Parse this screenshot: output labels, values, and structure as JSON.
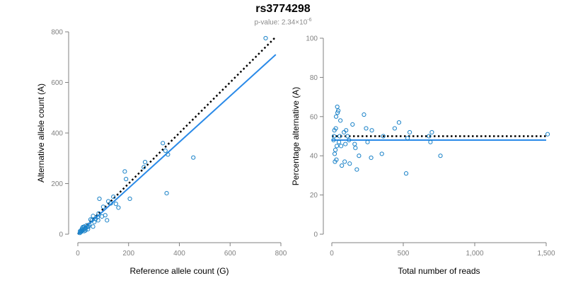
{
  "title": "rs3774298",
  "subtitle_prefix": "p-value: 2.34×10",
  "subtitle_exp": "-6",
  "colors": {
    "points": "#1a82c8",
    "fit": "#2a8ae8",
    "reference": "#000000",
    "axis": "#808080"
  },
  "chart_data": [
    {
      "type": "scatter",
      "xlabel": "Reference allele count (G)",
      "ylabel": "Alternative allele count (A)",
      "xlim": [
        0,
        800
      ],
      "ylim": [
        0,
        800
      ],
      "xticks": [
        0,
        200,
        400,
        600,
        800
      ],
      "yticks": [
        0,
        200,
        400,
        600,
        800
      ],
      "xtick_labels": [
        "0",
        "200",
        "400",
        "600",
        "800"
      ],
      "ytick_labels": [
        "0",
        "200",
        "400",
        "600",
        "800"
      ],
      "grid": false,
      "reference_line": {
        "style": "dotted",
        "x": [
          0,
          780
        ],
        "y": [
          0,
          780
        ]
      },
      "fit_line": {
        "style": "solid",
        "x": [
          0,
          780
        ],
        "y": [
          0,
          710
        ]
      },
      "points": [
        [
          740,
          775
        ],
        [
          455,
          303
        ],
        [
          350,
          162
        ],
        [
          355,
          315
        ],
        [
          345,
          330
        ],
        [
          335,
          360
        ],
        [
          265,
          285
        ],
        [
          260,
          265
        ],
        [
          205,
          140
        ],
        [
          190,
          218
        ],
        [
          185,
          248
        ],
        [
          160,
          105
        ],
        [
          140,
          148
        ],
        [
          130,
          122
        ],
        [
          120,
          130
        ],
        [
          115,
          55
        ],
        [
          108,
          75
        ],
        [
          100,
          108
        ],
        [
          95,
          70
        ],
        [
          85,
          140
        ],
        [
          82,
          82
        ],
        [
          78,
          68
        ],
        [
          70,
          60
        ],
        [
          65,
          48
        ],
        [
          60,
          72
        ],
        [
          55,
          55
        ],
        [
          50,
          58
        ],
        [
          45,
          38
        ],
        [
          42,
          30
        ],
        [
          38,
          28
        ],
        [
          35,
          35
        ],
        [
          30,
          25
        ],
        [
          28,
          22
        ],
        [
          25,
          30
        ],
        [
          22,
          18
        ],
        [
          20,
          28
        ],
        [
          18,
          15
        ],
        [
          16,
          20
        ],
        [
          14,
          10
        ],
        [
          12,
          14
        ],
        [
          10,
          8
        ],
        [
          9,
          12
        ],
        [
          8,
          5
        ],
        [
          25,
          12
        ],
        [
          30,
          15
        ],
        [
          18,
          25
        ],
        [
          40,
          20
        ],
        [
          60,
          30
        ],
        [
          80,
          55
        ],
        [
          150,
          120
        ]
      ]
    },
    {
      "type": "scatter",
      "xlabel": "Total number of reads",
      "ylabel": "Percentage alternative (A)",
      "xlim": [
        0,
        1500
      ],
      "ylim": [
        0,
        100
      ],
      "xticks": [
        0,
        500,
        1000,
        1500
      ],
      "yticks": [
        0,
        20,
        40,
        60,
        80,
        100
      ],
      "xtick_labels": [
        "0",
        "500",
        "1,000",
        "1,500"
      ],
      "ytick_labels": [
        "0",
        "20",
        "40",
        "60",
        "80",
        "100"
      ],
      "grid": false,
      "reference_line": {
        "style": "dotted",
        "x": [
          0,
          1500
        ],
        "y": [
          50,
          50
        ]
      },
      "fit_line": {
        "style": "solid",
        "x": [
          0,
          1500
        ],
        "y": [
          48,
          48
        ]
      },
      "points": [
        [
          1510,
          51
        ],
        [
          760,
          40
        ],
        [
          700,
          52
        ],
        [
          690,
          47
        ],
        [
          680,
          50
        ],
        [
          545,
          52
        ],
        [
          530,
          49
        ],
        [
          520,
          31
        ],
        [
          470,
          57
        ],
        [
          440,
          54
        ],
        [
          360,
          50
        ],
        [
          350,
          41
        ],
        [
          280,
          53
        ],
        [
          275,
          39
        ],
        [
          250,
          47
        ],
        [
          240,
          54
        ],
        [
          225,
          61
        ],
        [
          190,
          40
        ],
        [
          175,
          33
        ],
        [
          165,
          44
        ],
        [
          160,
          46
        ],
        [
          145,
          56
        ],
        [
          125,
          36
        ],
        [
          120,
          48
        ],
        [
          110,
          50
        ],
        [
          100,
          53
        ],
        [
          95,
          46
        ],
        [
          90,
          37
        ],
        [
          85,
          52
        ],
        [
          70,
          35
        ],
        [
          65,
          45
        ],
        [
          60,
          58
        ],
        [
          55,
          50
        ],
        [
          50,
          47
        ],
        [
          45,
          63
        ],
        [
          40,
          62
        ],
        [
          38,
          65
        ],
        [
          35,
          45
        ],
        [
          32,
          38
        ],
        [
          30,
          60
        ],
        [
          28,
          54
        ],
        [
          25,
          43
        ],
        [
          22,
          37
        ],
        [
          20,
          41
        ],
        [
          18,
          53
        ],
        [
          15,
          50
        ],
        [
          12,
          48
        ]
      ]
    }
  ]
}
